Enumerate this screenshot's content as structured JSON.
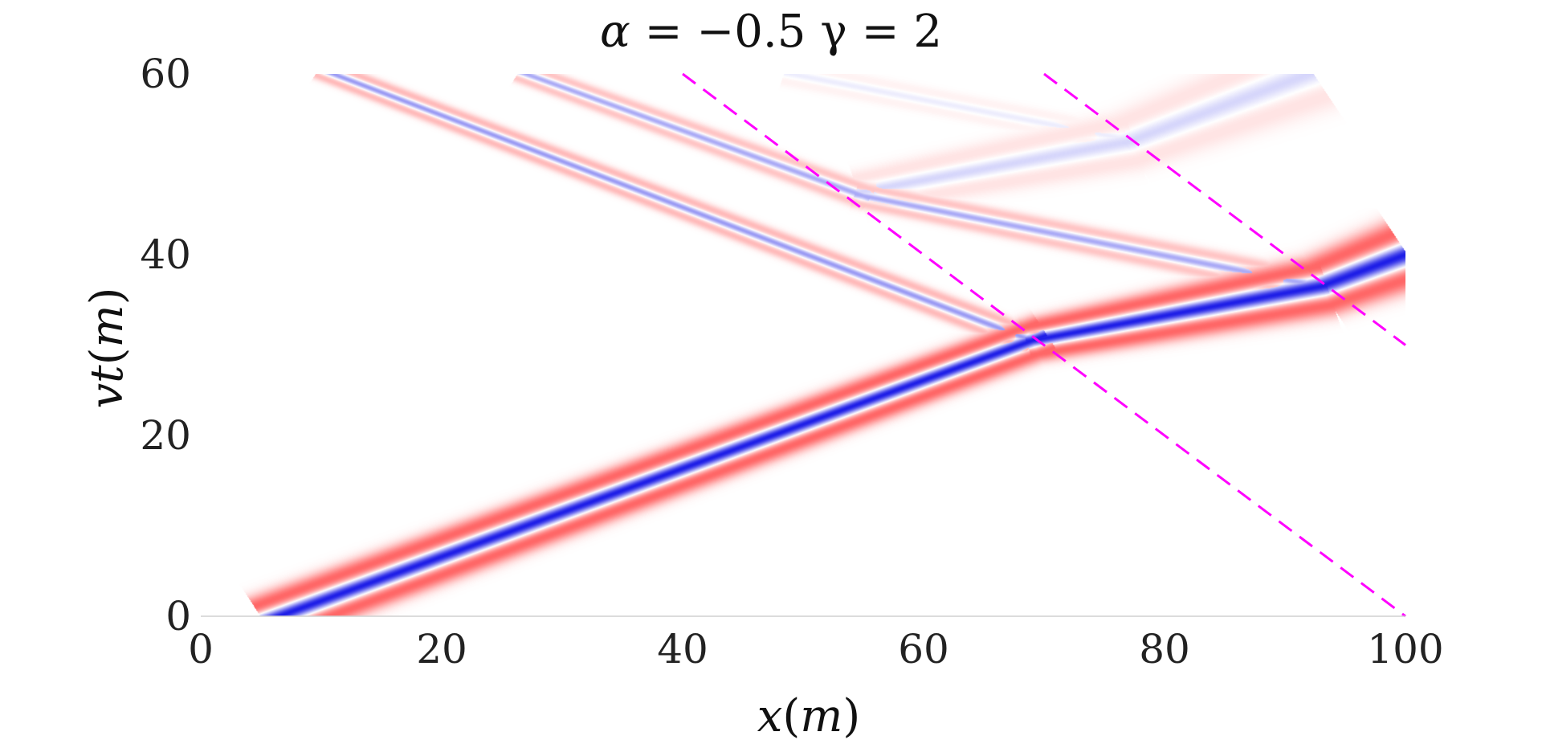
{
  "chart_data": {
    "type": "heatmap",
    "title": {
      "alpha_symbol": "α",
      "alpha_eq": " = ",
      "alpha_value": "−0.5",
      "gamma_symbol": "γ",
      "gamma_eq": " = ",
      "gamma_value": "2"
    },
    "xlabel": {
      "var": "x",
      "unit_open": "(",
      "unit": "m",
      "unit_close": ")"
    },
    "ylabel": {
      "var": "vt",
      "unit_open": "(",
      "unit": "m",
      "unit_close": ")"
    },
    "xlim": [
      0,
      100
    ],
    "ylim": [
      0,
      60
    ],
    "xticks": [
      0,
      20,
      40,
      60,
      80,
      100
    ],
    "yticks": [
      0,
      20,
      40,
      60
    ],
    "xtick_labels": [
      "0",
      "20",
      "40",
      "60",
      "80",
      "100"
    ],
    "ytick_labels": [
      "0",
      "20",
      "40",
      "60"
    ],
    "grid": false,
    "colors": {
      "positive": "#ff2a2a",
      "negative": "#1414e6",
      "reference_lines": "#ff00ff"
    },
    "trajectories": [
      {
        "kind": "main-soliton",
        "strength": 1.0,
        "points": [
          [
            6.5,
            0
          ],
          [
            69,
            30.5
          ],
          [
            93,
            36.5
          ],
          [
            100,
            40
          ]
        ],
        "widths": [
          1.2,
          1.0,
          1.4,
          1.6
        ]
      },
      {
        "kind": "reflected-1",
        "strength": 0.45,
        "points": [
          [
            68,
            31
          ],
          [
            11,
            60
          ]
        ],
        "widths": [
          0.6,
          0.5
        ]
      },
      {
        "kind": "reflected-2",
        "strength": 0.38,
        "points": [
          [
            91,
            37
          ],
          [
            55,
            46.5
          ],
          [
            27,
            60
          ]
        ],
        "widths": [
          0.7,
          0.6,
          0.5
        ]
      },
      {
        "kind": "transmitted-weak",
        "strength": 0.18,
        "points": [
          [
            55,
            47
          ],
          [
            77,
            52.5
          ],
          [
            92,
            60
          ]
        ],
        "widths": [
          1.0,
          1.4,
          1.8
        ]
      },
      {
        "kind": "faint-upper",
        "strength": 0.08,
        "points": [
          [
            49,
            60
          ],
          [
            76,
            53
          ]
        ],
        "widths": [
          0.6,
          0.6
        ]
      }
    ],
    "reference_lines": [
      {
        "x": [
          40,
          100
        ],
        "y": [
          60,
          0
        ]
      },
      {
        "x": [
          70,
          100
        ],
        "y": [
          60,
          30
        ]
      }
    ]
  }
}
